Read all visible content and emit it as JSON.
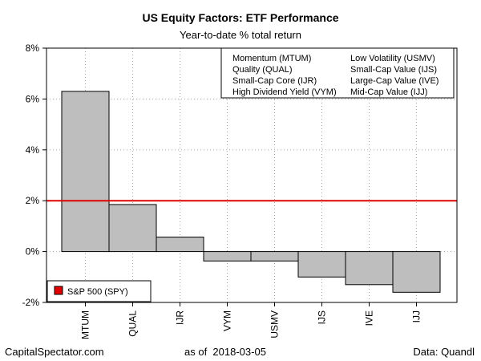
{
  "title": "US Equity Factors: ETF Performance",
  "subtitle": "Year-to-date % total return",
  "footer": {
    "source_site": "CapitalSpectator.com",
    "as_of_label": "as of",
    "as_of_date": "2018-03-05",
    "data_source": "Data: Quandl"
  },
  "colors": {
    "bar_fill": "#bebebe",
    "bar_stroke": "#000000",
    "benchmark_line": "#e00000",
    "grid": "#a8a8a8"
  },
  "chart_data": {
    "type": "bar",
    "title": "US Equity Factors: ETF Performance",
    "subtitle": "Year-to-date % total return",
    "categories": [
      "MTUM",
      "QUAL",
      "IJR",
      "VYM",
      "USMV",
      "IJS",
      "IVE",
      "IJJ"
    ],
    "values": [
      6.3,
      1.85,
      0.57,
      -0.37,
      -0.37,
      -1.0,
      -1.3,
      -1.6
    ],
    "ylim": [
      -2,
      8
    ],
    "y_ticks": [
      -2,
      0,
      2,
      4,
      6,
      8
    ],
    "y_tick_labels": [
      "-2%",
      "0%",
      "2%",
      "4%",
      "6%",
      "8%"
    ],
    "grid": true,
    "benchmark": {
      "name": "S&P 500 (SPY)",
      "value": 2.0
    },
    "legend_top_right": {
      "placement": "top-right",
      "entries": [
        "Momentum (MTUM)",
        "Low Volatility (USMV)",
        "Quality (QUAL)",
        "Small-Cap Value (IJS)",
        "Small-Cap Core (IJR)",
        "Large-Cap Value (IVE)",
        "High Dividend Yield (VYM)",
        "Mid-Cap Value (IJJ)"
      ]
    },
    "legend_bottom_left": {
      "placement": "bottom-left",
      "entries": [
        "S&P 500 (SPY)"
      ]
    }
  }
}
